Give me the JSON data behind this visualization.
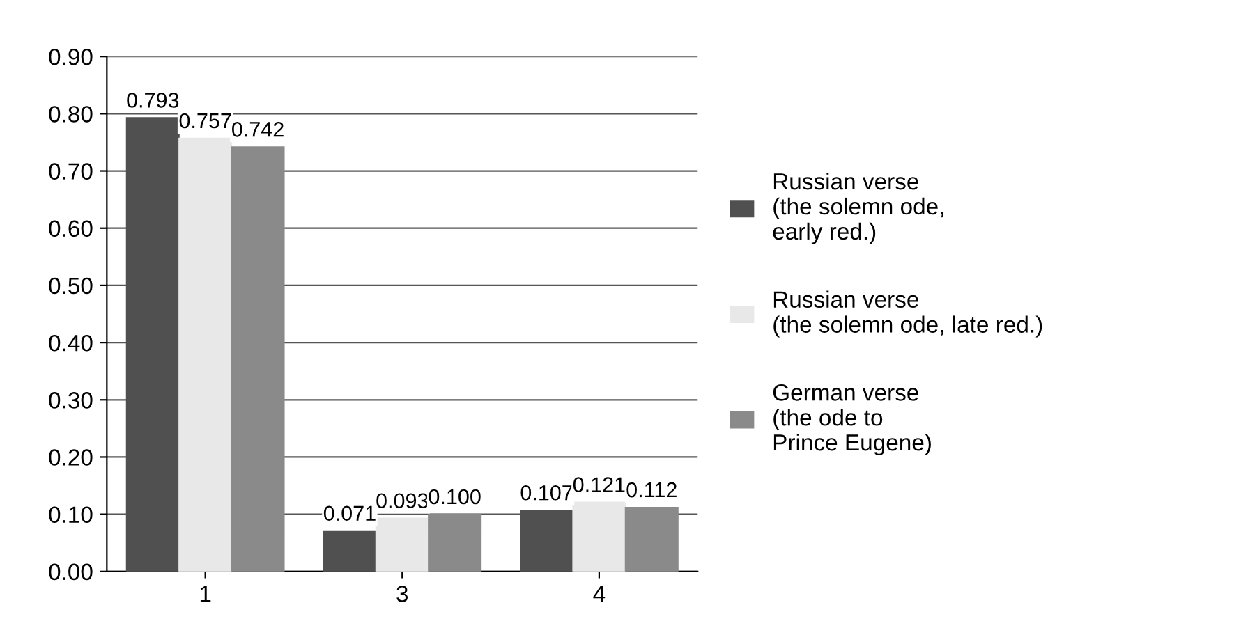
{
  "chart_data": {
    "type": "bar",
    "categories": [
      "1",
      "3",
      "4"
    ],
    "series": [
      {
        "name": "Russian verse\n(the solemn ode,\nearly red.)",
        "color": "#505050",
        "values": [
          0.793,
          0.071,
          0.107
        ],
        "value_labels": [
          "0.793",
          "0.071",
          "0.107"
        ]
      },
      {
        "name": "Russian verse\n(the solemn ode, late red.)",
        "color": "#e8e8e8",
        "values": [
          0.757,
          0.093,
          0.121
        ],
        "value_labels": [
          "0.757",
          "0.093",
          "0.121"
        ]
      },
      {
        "name": "German verse\n(the ode to\nPrince Eugene)",
        "color": "#8a8a8a",
        "values": [
          0.742,
          0.1,
          0.112
        ],
        "value_labels": [
          "0.742",
          "0.100",
          "0.112"
        ]
      }
    ],
    "ylim": [
      0,
      0.9
    ],
    "yticks": [
      {
        "value": 0,
        "label": "0.00"
      },
      {
        "value": 0.1,
        "label": "0.10"
      },
      {
        "value": 0.2,
        "label": "0.20"
      },
      {
        "value": 0.3,
        "label": "0.30"
      },
      {
        "value": 0.4,
        "label": "0.40"
      },
      {
        "value": 0.5,
        "label": "0.50"
      },
      {
        "value": 0.6,
        "label": "0.60"
      },
      {
        "value": 0.7,
        "label": "0.70"
      },
      {
        "value": 0.8,
        "label": "0.80"
      },
      {
        "value": 0.9,
        "label": "0.90"
      }
    ],
    "grid": "y",
    "legend": "right"
  }
}
